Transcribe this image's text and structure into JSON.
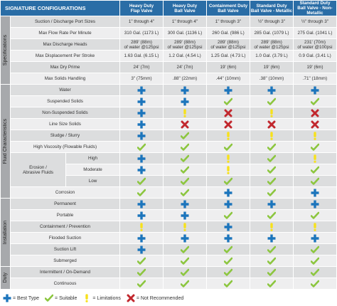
{
  "header": {
    "title": "SIGNATURE CONFIGURATIONS",
    "columns": [
      {
        "line1": "Heavy Duty",
        "line2": "Flap Valve"
      },
      {
        "line1": "Heavy Duty",
        "line2": "Ball Valve"
      },
      {
        "line1": "Containment Duty",
        "line2": "Ball Valve"
      },
      {
        "line1": "Standard Duty",
        "line2": "Ball Valve - Metallic"
      },
      {
        "line1": "Standard Duty",
        "line2": "Ball Valve - Non-Metallic"
      }
    ]
  },
  "sections": [
    {
      "label": "Specifications",
      "rows": [
        {
          "label": "Suction / Discharge Port Sizes",
          "cells": [
            "1\" through 4\"",
            "1\" through 4\"",
            "1\" through 3\"",
            "½\" through 3\"",
            "½\" through 3\""
          ]
        },
        {
          "label": "Max Flow Rate Per Minute",
          "cells": [
            "310 Gal. (1173 L)",
            "300 Gal. (1136 L)",
            "260 Gal. (986 L)",
            "285 Gal. (1079 L)",
            "275 Gal. (1041 L)"
          ]
        },
        {
          "label": "Max Discharge Heads",
          "cells": [
            "289' (88m)\nof water @125psi",
            "289' (88m)\nof water @125psi",
            "289' (88m)\nof water @125psi",
            "289' (88m)\nof water @125psi",
            "231' (70m)\nof water @100psi"
          ]
        },
        {
          "label": "Max Displacement Per Stroke",
          "cells": [
            "1.63 Gal. (6.15 L)",
            "1.2 Gal. (4.54 L)",
            "1.25 Gal. (4.73 L)",
            "1.0 Gal. (3.79 L)",
            "0.9 Gal. (3.41 L)"
          ]
        },
        {
          "label": "Max Dry Prime",
          "cells": [
            "24' (7m)",
            "24' (7m)",
            "19' (6m)",
            "19' (6m)",
            "19' (6m)"
          ]
        },
        {
          "label": "Max Solids Handling",
          "cells": [
            "3\" (75mm)",
            ".88\" (22mm)",
            ".44\" (10mm)",
            ".38\" (10mm)",
            ".71\" (18mm)"
          ]
        }
      ]
    },
    {
      "label": "Fluid Characteristics",
      "rows": [
        {
          "label": "Water",
          "symbols": [
            "best",
            "best",
            "best",
            "best",
            "best"
          ]
        },
        {
          "label": "Suspended Solids",
          "symbols": [
            "best",
            "best",
            "suitable",
            "suitable",
            "suitable"
          ]
        },
        {
          "label": "Non-Suspended Solids",
          "symbols": [
            "best",
            "limitations",
            "not-recommended",
            "limitations",
            "not-recommended"
          ]
        },
        {
          "label": "Line Size Solids",
          "symbols": [
            "best",
            "not-recommended",
            "not-recommended",
            "not-recommended",
            "not-recommended"
          ]
        },
        {
          "label": "Sludge / Slurry",
          "symbols": [
            "best",
            "suitable",
            "limitations",
            "limitations",
            "limitations"
          ]
        },
        {
          "label": "High Viscosity (Flowable Fluids)",
          "symbols": [
            "suitable",
            "suitable",
            "suitable",
            "suitable",
            "suitable"
          ]
        },
        {
          "group": "Erosion /\nAbrasive Fluids",
          "rows": [
            {
              "label": "High",
              "symbols": [
                "best",
                "suitable",
                "limitations",
                "suitable",
                "limitations"
              ]
            },
            {
              "label": "Moderate",
              "symbols": [
                "best",
                "suitable",
                "limitations",
                "suitable",
                "suitable"
              ]
            },
            {
              "label": "Low",
              "symbols": [
                "suitable",
                "suitable",
                "suitable",
                "suitable",
                "suitable"
              ]
            }
          ]
        },
        {
          "label": "Corrosion",
          "symbols": [
            "suitable",
            "suitable",
            "best",
            "suitable",
            "best"
          ]
        }
      ]
    },
    {
      "label": "Installation",
      "rows": [
        {
          "label": "Permanent",
          "symbols": [
            "best",
            "best",
            "best",
            "best",
            "best"
          ]
        },
        {
          "label": "Portable",
          "symbols": [
            "best",
            "best",
            "suitable",
            "suitable",
            "suitable"
          ]
        },
        {
          "label": "Containment / Prevention",
          "symbols": [
            "limitations",
            "limitations",
            "best",
            "limitations",
            "limitations"
          ]
        },
        {
          "label": "Flooded Suction",
          "symbols": [
            "best",
            "best",
            "best",
            "best",
            "best"
          ]
        },
        {
          "label": "Suction Lift",
          "symbols": [
            "best",
            "suitable",
            "suitable",
            "suitable",
            "suitable"
          ]
        },
        {
          "label": "Submerged",
          "symbols": [
            "suitable",
            "suitable",
            "suitable",
            "suitable",
            "suitable"
          ]
        }
      ]
    },
    {
      "label": "Duty",
      "rows": [
        {
          "label": "Intermittent / On-Demand",
          "symbols": [
            "suitable",
            "suitable",
            "suitable",
            "suitable",
            "suitable"
          ]
        },
        {
          "label": "Continuous",
          "symbols": [
            "suitable",
            "suitable",
            "suitable",
            "suitable",
            "suitable"
          ]
        }
      ]
    }
  ],
  "legend": [
    {
      "symbol": "best",
      "label": "= Best Type"
    },
    {
      "symbol": "suitable",
      "label": "= Suitable"
    },
    {
      "symbol": "limitations",
      "label": "= Limitations"
    },
    {
      "symbol": "not-recommended",
      "label": "= Not Recommended"
    }
  ]
}
